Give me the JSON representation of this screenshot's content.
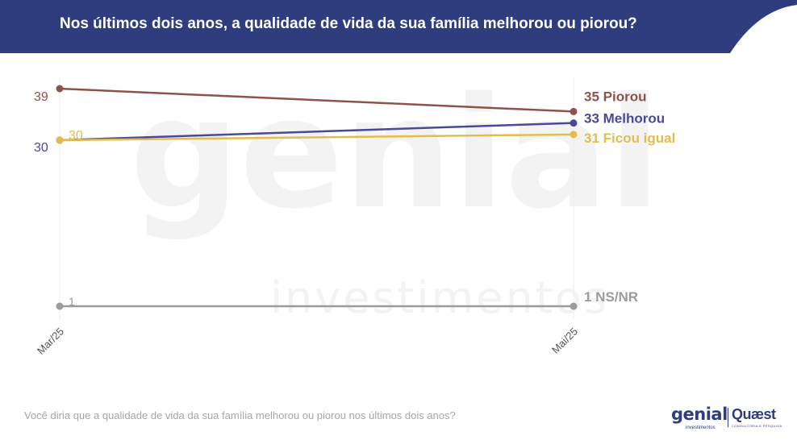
{
  "header": {
    "title": "Nos últimos dois anos, a qualidade de vida da sua família melhorou ou piorou?",
    "background_color": "#2f3d7e"
  },
  "watermark": {
    "brand": "genial",
    "sub": "investimentos"
  },
  "chart_data": {
    "type": "line",
    "categories": [
      "Mar/25",
      "Mai/25"
    ],
    "series": [
      {
        "name": "Piorou",
        "values": [
          39,
          35
        ],
        "color": "#8e524d",
        "end_label": "35 Piorou",
        "start_label": "39",
        "start_label_color": "#8e524d"
      },
      {
        "name": "Melhorou",
        "values": [
          30,
          33
        ],
        "color": "#4b4898",
        "end_label": "33 Melhorou",
        "start_label": "30",
        "start_label_color": "#4b4898"
      },
      {
        "name": "Ficou igual",
        "values": [
          30,
          31
        ],
        "color": "#e3bd4c",
        "end_label": "31 Ficou igual",
        "start_label": "30",
        "start_label_color": "#e3bd4c"
      },
      {
        "name": "NS/NR",
        "values": [
          1,
          1
        ],
        "color": "#9b9b9b",
        "end_label": "1 NS/NR",
        "start_label": "1",
        "start_label_color": "#9b9b9b"
      }
    ],
    "xlabel": "",
    "ylabel": "",
    "grid": false,
    "legend": "none"
  },
  "footnote": "Você diria que a qualidade de vida da sua família melhorou ou piorou nos últimos dois anos?",
  "logos": {
    "genial": "genial",
    "genial_sub": "investimentos",
    "quaest": "Quæst",
    "quaest_sub": "CONSULTORIA E PESQUISA"
  }
}
